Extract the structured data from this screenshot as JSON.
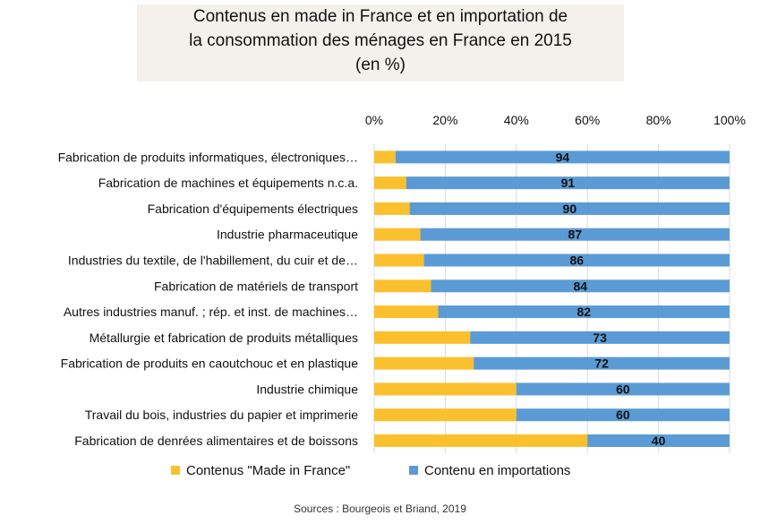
{
  "chart_data": {
    "type": "bar",
    "stacked": true,
    "orientation": "horizontal",
    "normalized_percent": true,
    "title_lines": [
      "Contenus en made in France et en importation de",
      "la consommation des ménages en France en 2015",
      "(en %)"
    ],
    "x_ticks": [
      "0%",
      "20%",
      "40%",
      "60%",
      "80%",
      "100%"
    ],
    "xlim": [
      0,
      100
    ],
    "x_axis_position": "top",
    "grid": true,
    "legend_placement": "bottom",
    "categories": [
      "Fabrication de produits informatiques, électroniques…",
      "Fabrication de machines et équipements n.c.a.",
      "Fabrication d'équipements électriques",
      "Industrie pharmaceutique",
      "Industries du textile, de l'habillement, du cuir et de…",
      "Fabrication de matériels de transport",
      "Autres industries manuf. ; rép. et inst. de machines…",
      "Métallurgie et fabrication de produits métalliques",
      "Fabrication de produits en caoutchouc et en plastique",
      "Industrie chimique",
      "Travail du bois, industries du papier et imprimerie",
      "Fabrication de denrées alimentaires et de boissons"
    ],
    "series": [
      {
        "name": "Contenus \"Made in France\"",
        "color": "#fbc02d",
        "values": [
          6,
          9,
          10,
          13,
          14,
          16,
          18,
          27,
          28,
          40,
          40,
          60
        ]
      },
      {
        "name": "Contenu en importations",
        "color": "#5b9bd5",
        "values": [
          94,
          91,
          90,
          87,
          86,
          84,
          82,
          73,
          72,
          60,
          60,
          40
        ],
        "data_labels": [
          "94",
          "91",
          "90",
          "87",
          "86",
          "84",
          "82",
          "73",
          "72",
          "60",
          "60",
          "40"
        ]
      }
    ],
    "source": "Sources : Bourgeois et Briand, 2019"
  }
}
